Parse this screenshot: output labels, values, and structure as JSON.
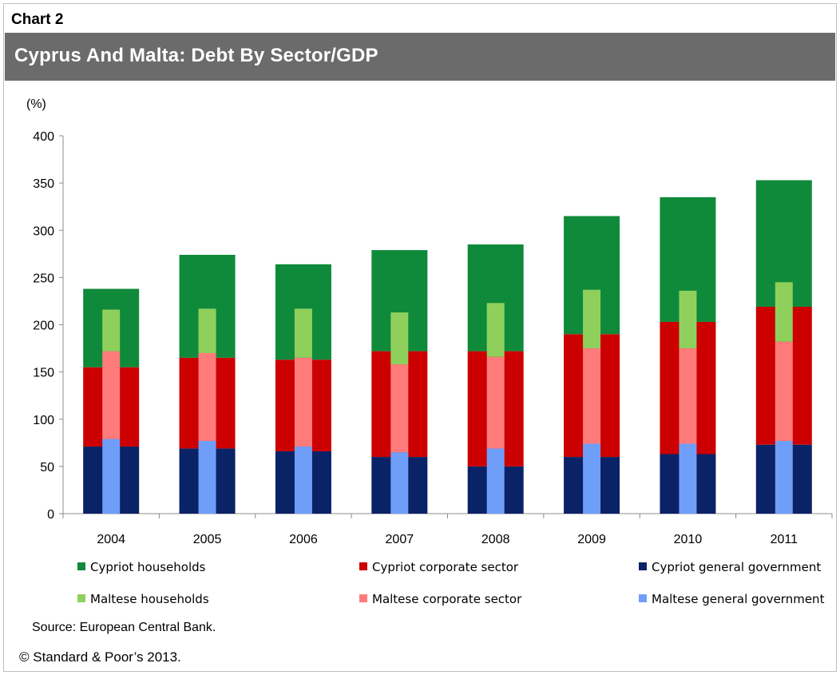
{
  "header": {
    "chart_label": "Chart 2",
    "title": "Cyprus And Malta: Debt By Sector/GDP"
  },
  "footer": {
    "source": "Source: European Central Bank.",
    "copyright": "© Standard & Poor’s 2013."
  },
  "chart_data": {
    "type": "bar",
    "ylabel": "(%)",
    "ylim": [
      0,
      400
    ],
    "yticks": [
      0,
      50,
      100,
      150,
      200,
      250,
      300,
      350,
      400
    ],
    "grid": false,
    "legend_position": "bottom",
    "categories": [
      "2004",
      "2005",
      "2006",
      "2007",
      "2008",
      "2009",
      "2010",
      "2011"
    ],
    "stacks": [
      {
        "name": "Cyprus",
        "series": [
          {
            "name": "Cypriot general government",
            "color": "#0a2266",
            "values": [
              71,
              69,
              66,
              60,
              50,
              60,
              63,
              73
            ]
          },
          {
            "name": "Cypriot corporate sector",
            "color": "#cc0000",
            "values": [
              84,
              96,
              97,
              112,
              122,
              130,
              140,
              146
            ]
          },
          {
            "name": "Cypriot households",
            "color": "#0f8a3a",
            "values": [
              83,
              109,
              101,
              107,
              113,
              125,
              132,
              134
            ]
          }
        ]
      },
      {
        "name": "Malta",
        "series": [
          {
            "name": "Maltese general government",
            "color": "#6f9ef8",
            "values": [
              79,
              77,
              71,
              65,
              69,
              74,
              74,
              77
            ]
          },
          {
            "name": "Maltese corporate sector",
            "color": "#ff7b7b",
            "values": [
              93,
              93,
              94,
              93,
              97,
              101,
              101,
              105
            ]
          },
          {
            "name": "Maltese households",
            "color": "#8fd05c",
            "values": [
              44,
              47,
              52,
              55,
              57,
              62,
              61,
              63
            ]
          }
        ]
      }
    ],
    "legend": [
      {
        "name": "Cypriot households",
        "color": "#0f8a3a"
      },
      {
        "name": "Cypriot corporate sector",
        "color": "#cc0000"
      },
      {
        "name": "Cypriot general government",
        "color": "#0a2266"
      },
      {
        "name": "Maltese households",
        "color": "#8fd05c"
      },
      {
        "name": "Maltese corporate sector",
        "color": "#ff7b7b"
      },
      {
        "name": "Maltese general government",
        "color": "#6f9ef8"
      }
    ]
  }
}
